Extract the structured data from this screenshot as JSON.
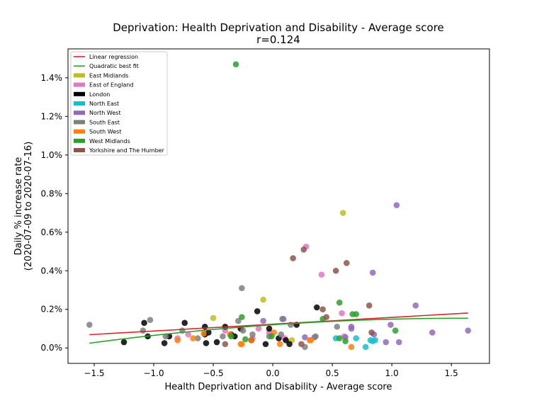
{
  "chart_data": {
    "type": "scatter",
    "title": "Deprivation: Health Deprivation and Disability - Average score",
    "subtitle": "r=0.124",
    "xlabel": "Health Deprivation and Disability - Average score",
    "ylabel_lines": [
      "Daily % increase rate",
      "(2020-07-09 to 2020-07-16)"
    ],
    "xlim": [
      -1.72,
      1.82
    ],
    "ylim": [
      -0.0008,
      0.0155
    ],
    "x_ticks": [
      {
        "value": -1.5,
        "label": "−1.5"
      },
      {
        "value": -1.0,
        "label": "−1.0"
      },
      {
        "value": -0.5,
        "label": "−0.5"
      },
      {
        "value": 0.0,
        "label": "0.0"
      },
      {
        "value": 0.5,
        "label": "0.5"
      },
      {
        "value": 1.0,
        "label": "1.0"
      },
      {
        "value": 1.5,
        "label": "1.5"
      }
    ],
    "y_ticks": [
      {
        "value": 0.0,
        "label": "0.0%"
      },
      {
        "value": 0.002,
        "label": "0.2%"
      },
      {
        "value": 0.004,
        "label": "0.4%"
      },
      {
        "value": 0.006,
        "label": "0.6%"
      },
      {
        "value": 0.008,
        "label": "0.8%"
      },
      {
        "value": 0.01,
        "label": "1.0%"
      },
      {
        "value": 0.012,
        "label": "1.2%"
      },
      {
        "value": 0.014,
        "label": "1.4%"
      }
    ],
    "grid": false,
    "legend_position": "top-left",
    "fit_lines": [
      {
        "name": "Linear regression",
        "color": "#d62728",
        "kind": "linear",
        "x_range": [
          -1.54,
          1.64
        ],
        "coef": [
          0.00123,
          0.000353
        ]
      },
      {
        "name": "Quadratic best fit",
        "color": "#2ca02c",
        "kind": "quadratic",
        "x_range": [
          -1.54,
          1.64
        ],
        "coef": [
          0.0012,
          0.00042,
          -0.00013
        ]
      }
    ],
    "series": [
      {
        "name": "East Midlands",
        "color": "#bcbd22",
        "points": [
          [
            -0.5,
            0.00155
          ],
          [
            0.59,
            0.007
          ],
          [
            -0.08,
            0.0025
          ],
          [
            0.16,
            0.0004
          ]
        ]
      },
      {
        "name": "East of England",
        "color": "#e377c2",
        "points": [
          [
            -0.8,
            0.0005
          ],
          [
            -0.71,
            0.0007
          ],
          [
            -0.4,
            0.0009
          ],
          [
            -0.17,
            0.0005
          ],
          [
            0.28,
            0.00525
          ],
          [
            0.41,
            0.0038
          ],
          [
            0.58,
            0.0018
          ],
          [
            0.6,
            0.0006
          ],
          [
            -0.12,
            0.001
          ],
          [
            0.1,
            0.0005
          ],
          [
            -0.03,
            0.0008
          ]
        ]
      },
      {
        "name": "London",
        "color": "#000000",
        "points": [
          [
            -1.25,
            0.0003
          ],
          [
            -1.08,
            0.0013
          ],
          [
            -1.05,
            0.0006
          ],
          [
            -0.91,
            0.00025
          ],
          [
            -0.87,
            0.0006
          ],
          [
            -0.74,
            0.0013
          ],
          [
            -0.57,
            0.0007
          ],
          [
            -0.56,
            0.00025
          ],
          [
            -0.54,
            0.0008
          ],
          [
            -0.47,
            0.0003
          ],
          [
            -0.4,
            0.0011
          ],
          [
            -0.35,
            0.0007
          ],
          [
            -0.27,
            0.001
          ],
          [
            -0.18,
            0.0004
          ],
          [
            -0.13,
            0.0019
          ],
          [
            -0.06,
            0.0002
          ],
          [
            -0.03,
            0.001
          ],
          [
            0.05,
            0.0005
          ],
          [
            0.11,
            0.0004
          ],
          [
            0.14,
            0.0002
          ],
          [
            0.2,
            0.0012
          ],
          [
            0.37,
            0.0021
          ],
          [
            -0.57,
            0.0011
          ],
          [
            -0.32,
            0.0006
          ]
        ]
      },
      {
        "name": "North East",
        "color": "#17becf",
        "points": [
          [
            0.53,
            0.0005
          ],
          [
            0.7,
            0.0005
          ],
          [
            0.78,
            5e-05
          ],
          [
            0.82,
            0.0004
          ],
          [
            0.84,
            0.00035
          ],
          [
            0.86,
            0.0004
          ]
        ]
      },
      {
        "name": "North West",
        "color": "#9467bd",
        "points": [
          [
            0.08,
            0.0015
          ],
          [
            0.27,
            0.00055
          ],
          [
            0.35,
            0.00055
          ],
          [
            0.61,
            0.00055
          ],
          [
            0.66,
            0.001
          ],
          [
            0.84,
            0.0039
          ],
          [
            0.85,
            0.0007
          ],
          [
            0.95,
            0.0003
          ],
          [
            0.99,
            0.0012
          ],
          [
            1.04,
            0.0074
          ],
          [
            1.06,
            0.0003
          ],
          [
            1.2,
            0.0022
          ],
          [
            1.34,
            0.0008
          ],
          [
            1.64,
            0.0009
          ],
          [
            -0.08,
            0.0014
          ],
          [
            0.66,
            0.0011
          ]
        ]
      },
      {
        "name": "South East",
        "color": "#7f7f7f",
        "points": [
          [
            -1.54,
            0.0012
          ],
          [
            -1.09,
            0.0009
          ],
          [
            -1.03,
            0.00145
          ],
          [
            -0.9,
            0.0006
          ],
          [
            -0.76,
            0.0009
          ],
          [
            -0.63,
            0.0005
          ],
          [
            -0.42,
            0.0006
          ],
          [
            -0.29,
            0.0014
          ],
          [
            -0.26,
            0.0031
          ],
          [
            -0.25,
            0.0009
          ],
          [
            -0.17,
            0.0007
          ],
          [
            0.07,
            0.0007
          ],
          [
            0.15,
            0.0012
          ],
          [
            0.27,
            5e-05
          ],
          [
            0.36,
            0.0006
          ],
          [
            0.54,
            0.0011
          ],
          [
            -0.03,
            0.0006
          ],
          [
            0.09,
            0.0015
          ]
        ]
      },
      {
        "name": "South West",
        "color": "#ff7f0e",
        "points": [
          [
            -0.8,
            0.0004
          ],
          [
            -0.67,
            0.0005
          ],
          [
            -0.58,
            0.00075
          ],
          [
            -0.36,
            0.0007
          ],
          [
            -0.27,
            0.0002
          ],
          [
            -0.26,
            0.0002
          ],
          [
            0.01,
            0.0008
          ],
          [
            0.06,
            0.0002
          ],
          [
            0.31,
            0.0004
          ],
          [
            0.32,
            0.0004
          ],
          [
            0.66,
            5e-05
          ],
          [
            -0.18,
            0.0004
          ]
        ]
      },
      {
        "name": "West Midlands",
        "color": "#2ca02c",
        "points": [
          [
            -0.31,
            0.0147
          ],
          [
            -0.35,
            0.0006
          ],
          [
            -0.26,
            0.0016
          ],
          [
            -0.23,
            0.00045
          ],
          [
            0.42,
            0.0015
          ],
          [
            0.56,
            0.00235
          ],
          [
            0.61,
            0.00035
          ],
          [
            0.67,
            0.00175
          ],
          [
            0.7,
            0.00175
          ],
          [
            1.03,
            0.0009
          ],
          [
            -0.01,
            0.0006
          ],
          [
            0.56,
            0.0005
          ]
        ]
      },
      {
        "name": "Yorkshire and The Humber",
        "color": "#8c564b",
        "points": [
          [
            -0.4,
            0.0002
          ],
          [
            0.17,
            0.00465
          ],
          [
            0.26,
            0.0051
          ],
          [
            0.45,
            0.0016
          ],
          [
            0.42,
            0.002
          ],
          [
            0.53,
            0.004
          ],
          [
            0.62,
            0.0044
          ],
          [
            0.81,
            0.0022
          ],
          [
            0.83,
            0.0008
          ],
          [
            0.24,
            0.0002
          ]
        ]
      }
    ]
  }
}
